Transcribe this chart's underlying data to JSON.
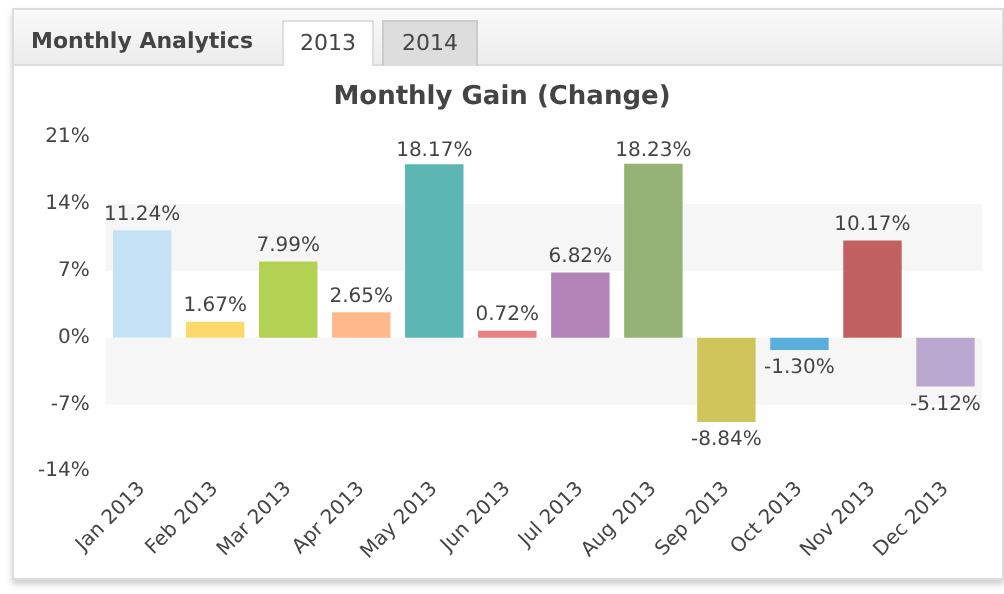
{
  "chart_data": {
    "type": "bar",
    "title": "Monthly Gain (Change)",
    "annotations": [
      "Monthly Analytics",
      "2013",
      "2014"
    ],
    "categories": [
      "Jan 2013",
      "Feb 2013",
      "Mar 2013",
      "Apr 2013",
      "May 2013",
      "Jun 2013",
      "Jul 2013",
      "Aug 2013",
      "Sep 2013",
      "Oct 2013",
      "Nov 2013",
      "Dec 2013"
    ],
    "values": [
      11.24,
      1.67,
      7.99,
      2.65,
      18.17,
      0.72,
      6.82,
      18.23,
      -8.84,
      -1.3,
      10.17,
      -5.12
    ],
    "value_labels": [
      "11.24%",
      "1.67%",
      "7.99%",
      "2.65%",
      "18.17%",
      "0.72%",
      "6.82%",
      "18.23%",
      "-8.84%",
      "-1.30%",
      "10.17%",
      "-5.12%"
    ],
    "colors": [
      "#c6e2f7",
      "#fdd86a",
      "#b3d254",
      "#ffb88a",
      "#5cb6b3",
      "#e88080",
      "#b384b8",
      "#93b273",
      "#cfc55a",
      "#5aaedc",
      "#c06060",
      "#bba8d0"
    ],
    "ylim": [
      -14,
      21
    ],
    "yticks": [
      {
        "value": -14,
        "label": "-14%"
      },
      {
        "value": -7,
        "label": "-7%"
      },
      {
        "value": 0,
        "label": "0%"
      },
      {
        "value": 7,
        "label": "7%"
      },
      {
        "value": 14,
        "label": "14%"
      },
      {
        "value": 21,
        "label": "21%"
      }
    ],
    "bands": [
      {
        "axis": "y",
        "from": 7,
        "to": 14,
        "color": "#f6f6f6"
      },
      {
        "axis": "y",
        "from": -7,
        "to": 0,
        "color": "#f6f6f6"
      }
    ],
    "grid": false,
    "legend": false
  }
}
